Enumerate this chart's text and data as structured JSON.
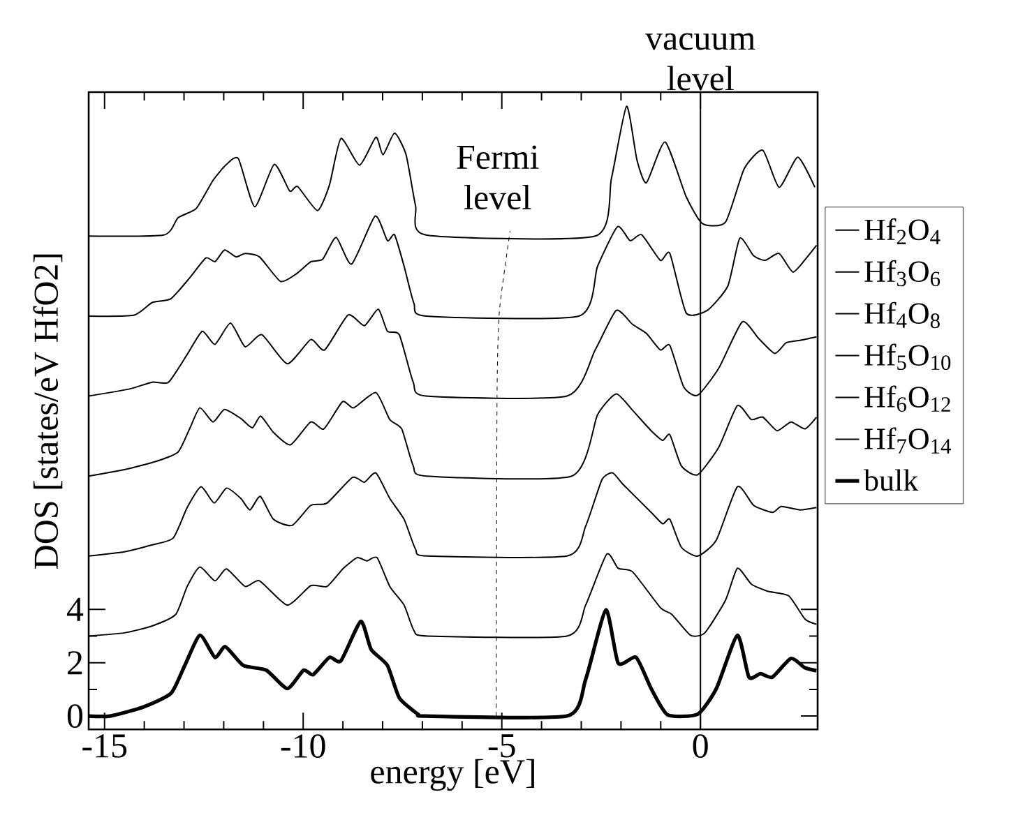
{
  "chart_data": {
    "type": "line",
    "xlabel": "energy [eV]",
    "ylabel": "DOS [states/eV HfO2]",
    "xlim": [
      -15.4,
      2.95
    ],
    "ylim": [
      -0.5,
      23.4
    ],
    "xticks": [
      -15,
      -10,
      -5,
      0
    ],
    "yticks": [
      0,
      2,
      4
    ],
    "legend": "right",
    "marker": "none",
    "line_style": "solid",
    "ref_lines": [
      {
        "axis": "x",
        "value": 0,
        "label": "vacuum level",
        "color": "#000000"
      }
    ],
    "annotations": [
      "Fermi level"
    ],
    "series": [
      {
        "name": "Hf$_{2}$O$_{4}$",
        "color": "#000000",
        "x": [
          -15.4,
          -13.51,
          -13.15,
          -12.69,
          -12.27,
          -11.93,
          -11.63,
          -11.22,
          -10.73,
          -10.34,
          -10.14,
          -9.64,
          -9.34,
          -9.05,
          -8.58,
          -8.17,
          -7.99,
          -7.7,
          -7.41,
          -7.17,
          -6.91,
          -2.65,
          -2.24,
          -1.86,
          -1.6,
          -1.36,
          -0.89,
          -0.36,
          0.05,
          0.63,
          1.1,
          1.57,
          1.98,
          2.45,
          2.88
        ],
        "values": [
          18,
          18.04,
          18.69,
          19.04,
          20.09,
          20.69,
          20.9,
          19.1,
          20.69,
          19.69,
          19.86,
          18.96,
          19.91,
          21.66,
          20.66,
          21.71,
          21.05,
          21.86,
          21.05,
          19.13,
          18.04,
          18,
          20.17,
          22.87,
          20.87,
          20.0,
          21.53,
          19.48,
          18.47,
          18.52,
          20.52,
          21.22,
          19.83,
          20.96,
          19.83
        ]
      },
      {
        "name": "Hf$_{3}$O$_{6}$",
        "color": "#000000",
        "x": [
          -15.4,
          -14.27,
          -13.8,
          -13.33,
          -12.86,
          -12.45,
          -12.22,
          -11.98,
          -11.69,
          -11.46,
          -11.1,
          -10.57,
          -10.16,
          -9.81,
          -9.51,
          -9.17,
          -8.78,
          -8.19,
          -7.88,
          -7.7,
          -7.46,
          -7.21,
          -6.91,
          -3.06,
          -2.59,
          -2.09,
          -1.77,
          -1.48,
          -1.01,
          -0.77,
          -0.36,
          0.17,
          0.69,
          0.99,
          1.34,
          1.63,
          1.98,
          2.33,
          2.69,
          2.92
        ],
        "values": [
          15,
          15.03,
          15.51,
          15.65,
          16.43,
          17.18,
          17.04,
          17.48,
          17.22,
          17.35,
          17.22,
          16.3,
          16.6,
          17.04,
          17.13,
          17.95,
          16.95,
          18.75,
          17.83,
          18.05,
          16.87,
          15.47,
          15,
          15,
          16.87,
          18.35,
          17.83,
          18.05,
          17.09,
          17.35,
          15.12,
          15.21,
          16.13,
          17.92,
          17.26,
          17.09,
          17.35,
          16.65,
          17.22,
          17.65
        ]
      },
      {
        "name": "Hf$_{4}$O$_{8}$",
        "color": "#000000",
        "x": [
          -15.4,
          -14.39,
          -13.8,
          -13.39,
          -12.92,
          -12.54,
          -12.22,
          -11.83,
          -11.46,
          -11.04,
          -10.4,
          -9.81,
          -9.46,
          -8.87,
          -8.46,
          -8.11,
          -7.88,
          -7.58,
          -7.23,
          -6.91,
          -3.36,
          -2.65,
          -2.12,
          -1.71,
          -1.36,
          -1.01,
          -0.77,
          -0.42,
          -0.07,
          0.46,
          1.05,
          1.46,
          1.87,
          2.16,
          2.51,
          2.92
        ],
        "values": [
          12,
          12.26,
          12.52,
          12.52,
          13.56,
          14.43,
          13.94,
          14.74,
          13.85,
          14.3,
          13.21,
          14.12,
          13.73,
          15.04,
          14.64,
          15.26,
          14.43,
          14.3,
          12.52,
          12,
          12,
          13.73,
          15.21,
          14.69,
          14.35,
          13.73,
          13.9,
          12.34,
          12.03,
          13.04,
          14.78,
          14.17,
          13.6,
          14.0,
          14.09,
          14.22
        ]
      },
      {
        "name": "Hf$_{5}$O$_{10}$",
        "color": "#000000",
        "x": [
          -15.4,
          -14.5,
          -13.68,
          -13.15,
          -12.86,
          -12.6,
          -12.27,
          -11.98,
          -11.57,
          -11.28,
          -11.07,
          -10.75,
          -10.32,
          -9.81,
          -9.48,
          -9.01,
          -8.73,
          -8.17,
          -7.82,
          -7.52,
          -7.23,
          -6.91,
          -3.24,
          -2.59,
          -2.12,
          -1.71,
          -1.24,
          -0.95,
          -0.77,
          -0.48,
          -0.07,
          0.46,
          0.93,
          1.28,
          1.57,
          1.93,
          2.28,
          2.63,
          2.92
        ],
        "values": [
          9,
          9.24,
          9.56,
          9.9,
          10.77,
          11.56,
          11.03,
          11.5,
          11.16,
          10.81,
          11.25,
          10.64,
          10.17,
          11.03,
          10.77,
          11.79,
          11.56,
          12.13,
          11.12,
          10.77,
          9.38,
          9,
          9,
          11.3,
          12.08,
          11.47,
          10.7,
          10.34,
          10.55,
          9.38,
          9.05,
          10.08,
          11.64,
          11.12,
          11.21,
          10.7,
          11.03,
          10.77,
          11.21
        ]
      },
      {
        "name": "Hf$_{6}$O$_{12}$",
        "color": "#000000",
        "x": [
          -15.4,
          -14.5,
          -13.8,
          -13.27,
          -12.92,
          -12.57,
          -12.24,
          -11.93,
          -11.57,
          -11.34,
          -11.08,
          -10.75,
          -10.28,
          -9.81,
          -9.4,
          -8.76,
          -8.46,
          -8.17,
          -7.82,
          -7.46,
          -7.17,
          -6.88,
          -3.36,
          -2.89,
          -2.48,
          -2.21,
          -1.95,
          -1.24,
          -0.95,
          -0.77,
          -0.48,
          -0.07,
          0.4,
          0.93,
          1.34,
          1.81,
          2.04,
          2.51,
          2.92
        ],
        "values": [
          6,
          6.16,
          6.42,
          6.68,
          7.82,
          8.6,
          7.99,
          8.55,
          8.16,
          7.73,
          8.24,
          7.38,
          7.15,
          7.9,
          7.99,
          8.95,
          8.77,
          9.12,
          8.16,
          7.38,
          6.25,
          6,
          6,
          7.12,
          8.86,
          9.12,
          8.69,
          7.64,
          7.21,
          7.38,
          6.33,
          6,
          6.6,
          8.6,
          7.9,
          7.64,
          7.86,
          7.73,
          7.82
        ]
      },
      {
        "name": "Hf$_{7}$O$_{14}$",
        "color": "#000000",
        "x": [
          -15.4,
          -14.5,
          -13.8,
          -13.21,
          -12.92,
          -12.6,
          -12.22,
          -11.93,
          -11.46,
          -11.1,
          -10.4,
          -9.81,
          -9.4,
          -8.99,
          -8.64,
          -8.4,
          -8.14,
          -7.82,
          -7.46,
          -7.21,
          -6.88,
          -3.36,
          -2.89,
          -2.36,
          -2.07,
          -1.71,
          -1.01,
          -0.72,
          -0.25,
          0.11,
          0.63,
          0.93,
          1.28,
          1.69,
          2.22,
          2.63,
          2.92
        ],
        "values": [
          3,
          3.12,
          3.38,
          3.81,
          4.86,
          5.59,
          5.07,
          5.52,
          4.86,
          5.07,
          4.16,
          4.89,
          4.86,
          5.54,
          5.94,
          5.82,
          5.94,
          4.86,
          4.16,
          3.2,
          3,
          3,
          4.16,
          6.07,
          5.54,
          5.41,
          4.07,
          3.81,
          3.03,
          3.12,
          4.34,
          5.54,
          4.95,
          4.68,
          4.51,
          3.64,
          3.44
        ]
      },
      {
        "name": "bulk",
        "color": "#000000",
        "x": [
          -15.4,
          -14.86,
          -14.04,
          -13.33,
          -12.98,
          -12.6,
          -12.22,
          -11.96,
          -11.51,
          -10.93,
          -10.4,
          -9.99,
          -9.75,
          -9.34,
          -9.05,
          -8.55,
          -8.29,
          -7.88,
          -7.58,
          -7.11,
          -6.9,
          -3.36,
          -2.89,
          -2.38,
          -2.07,
          -1.62,
          -1.24,
          -0.83,
          -0.07,
          0.4,
          0.93,
          1.22,
          1.51,
          1.81,
          2.28,
          2.63,
          2.92
        ],
        "values": [
          0,
          0,
          0.33,
          0.85,
          1.9,
          3.03,
          2.2,
          2.6,
          1.9,
          1.72,
          1.03,
          1.72,
          1.55,
          2.2,
          2.07,
          3.55,
          2.5,
          1.9,
          0.68,
          0.07,
          0,
          0,
          1.37,
          3.98,
          1.98,
          2.2,
          1.03,
          0.05,
          0.07,
          1.03,
          3.03,
          1.46,
          1.59,
          1.46,
          2.16,
          1.81,
          1.7
        ]
      },
      {
        "color": "#000000",
        "line_style": "dashed",
        "x": [
          -5.14,
          -5.12,
          -5.06,
          -4.79
        ],
        "values": [
          0,
          12,
          15.2,
          18.2
        ]
      }
    ]
  }
}
